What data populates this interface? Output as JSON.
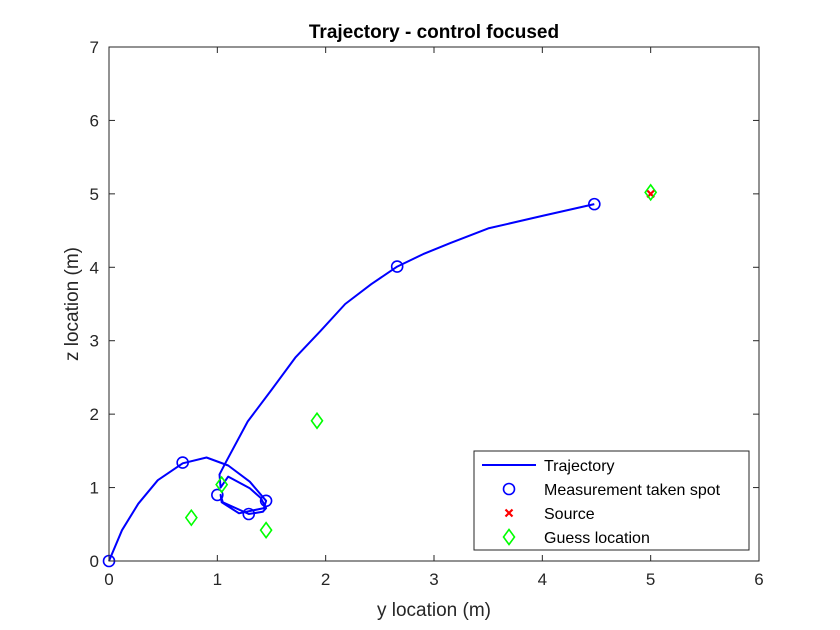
{
  "chart_data": {
    "type": "line",
    "title": "Trajectory - control focused",
    "xlabel": "y location (m)",
    "ylabel": "z location (m)",
    "xlim": [
      0,
      6
    ],
    "ylim": [
      0,
      7
    ],
    "xticks": [
      "0",
      "1",
      "2",
      "3",
      "4",
      "5",
      "6"
    ],
    "yticks": [
      "0",
      "1",
      "2",
      "3",
      "4",
      "5",
      "6",
      "7"
    ],
    "grid": false,
    "legend_position": "bottom-right",
    "series": [
      {
        "name": "Trajectory",
        "kind": "line",
        "color": "#0000ff",
        "x": [
          0,
          0.12,
          0.27,
          0.45,
          0.68,
          0.9,
          1.1,
          1.3,
          1.45,
          1.43,
          1.2,
          1.04,
          1.03,
          1.05,
          1.29,
          1.42,
          1.45,
          1.4,
          1.3,
          1.1,
          1.03,
          1.02,
          1.08,
          1.28,
          1.5,
          1.72,
          1.95,
          2.18,
          2.42,
          2.66,
          2.9,
          3.15,
          3.5,
          4.0,
          4.48
        ],
        "y": [
          0,
          0.42,
          0.78,
          1.1,
          1.33,
          1.41,
          1.3,
          1.08,
          0.82,
          0.72,
          0.65,
          0.8,
          0.9,
          0.8,
          0.64,
          0.67,
          0.72,
          0.86,
          0.99,
          1.15,
          1.0,
          1.18,
          1.35,
          1.9,
          2.33,
          2.77,
          3.13,
          3.5,
          3.77,
          4.01,
          4.18,
          4.33,
          4.53,
          4.7,
          4.86
        ]
      },
      {
        "name": "Measurement taken spot",
        "kind": "marker-circle",
        "color": "#0000ff",
        "x": [
          0,
          0.68,
          1.0,
          1.29,
          1.45,
          2.66,
          4.48
        ],
        "y": [
          0,
          1.34,
          0.9,
          0.64,
          0.82,
          4.01,
          4.86
        ]
      },
      {
        "name": "Source",
        "kind": "marker-x",
        "color": "#ff0000",
        "x": [
          5.0
        ],
        "y": [
          5.0
        ]
      },
      {
        "name": "Guess location",
        "kind": "marker-diamond",
        "color": "#00ff00",
        "x": [
          0.76,
          1.04,
          1.45,
          1.92,
          5.0
        ],
        "y": [
          0.59,
          1.04,
          0.42,
          1.91,
          5.02
        ]
      }
    ]
  }
}
